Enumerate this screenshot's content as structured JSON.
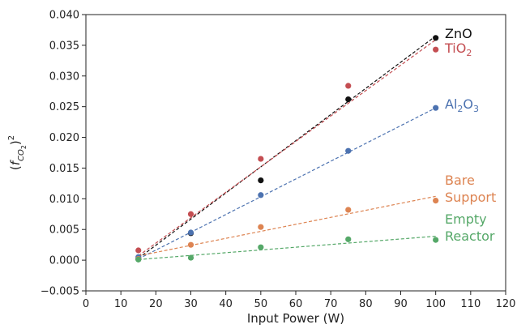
{
  "chart_data": {
    "type": "scatter",
    "title": "",
    "xlabel": "Input Power (W)",
    "ylabel_parts": [
      "(",
      "f",
      "CO",
      "2",
      ")",
      "2"
    ],
    "xlim": [
      0,
      120
    ],
    "ylim": [
      -0.005,
      0.04
    ],
    "xticks": [
      0,
      10,
      20,
      30,
      40,
      50,
      60,
      70,
      80,
      90,
      100,
      110,
      120
    ],
    "yticks": [
      -0.005,
      0.0,
      0.005,
      0.01,
      0.015,
      0.02,
      0.025,
      0.03,
      0.035,
      0.04
    ],
    "ytick_labels": [
      "−0.005",
      "0.000",
      "0.005",
      "0.010",
      "0.015",
      "0.020",
      "0.025",
      "0.030",
      "0.035",
      "0.040"
    ],
    "grid": false,
    "legend": "inline labels at right",
    "series": [
      {
        "id": "zno",
        "label_lines": [
          [
            {
              "t": "ZnO"
            }
          ]
        ],
        "color": "#111111",
        "x": [
          15,
          30,
          50,
          75,
          100
        ],
        "y": [
          0.0002,
          0.0044,
          0.013,
          0.0262,
          0.0362
        ],
        "fit": [
          [
            15,
            0.0003
          ],
          [
            100,
            0.0365
          ]
        ]
      },
      {
        "id": "tio2",
        "label_lines": [
          [
            {
              "t": "TiO"
            },
            {
              "t": "2",
              "sub": true
            }
          ]
        ],
        "color": "#c44e52",
        "x": [
          15,
          30,
          50,
          75,
          100
        ],
        "y": [
          0.0016,
          0.0075,
          0.0165,
          0.0284,
          0.0343
        ],
        "fit": [
          [
            15,
            0.0007
          ],
          [
            100,
            0.0359
          ]
        ]
      },
      {
        "id": "al2o3",
        "label_lines": [
          [
            {
              "t": "Al"
            },
            {
              "t": "2",
              "sub": true
            },
            {
              "t": "O"
            },
            {
              "t": "3",
              "sub": true
            }
          ]
        ],
        "color": "#4c72b0",
        "x": [
          15,
          30,
          50,
          75,
          100
        ],
        "y": [
          0.0005,
          0.0045,
          0.0106,
          0.0178,
          0.0248
        ],
        "fit": [
          [
            15,
            0.0002
          ],
          [
            100,
            0.0248
          ]
        ]
      },
      {
        "id": "bare-support",
        "label_lines": [
          [
            {
              "t": "Bare"
            }
          ],
          [
            {
              "t": "Support"
            }
          ]
        ],
        "color": "#dd8452",
        "x": [
          15,
          30,
          50,
          75,
          100
        ],
        "y": [
          0.0002,
          0.0025,
          0.0054,
          0.0082,
          0.0097
        ],
        "fit": [
          [
            15,
            0.0007
          ],
          [
            100,
            0.0104
          ]
        ]
      },
      {
        "id": "empty-reactor",
        "label_lines": [
          [
            {
              "t": "Empty"
            }
          ],
          [
            {
              "t": "Reactor"
            }
          ]
        ],
        "color": "#55a868",
        "x": [
          15,
          30,
          50,
          75,
          100
        ],
        "y": [
          0.0001,
          0.0004,
          0.0021,
          0.0034,
          0.0033
        ],
        "fit": [
          [
            15,
            0.0001
          ],
          [
            100,
            0.0039
          ]
        ]
      }
    ]
  }
}
